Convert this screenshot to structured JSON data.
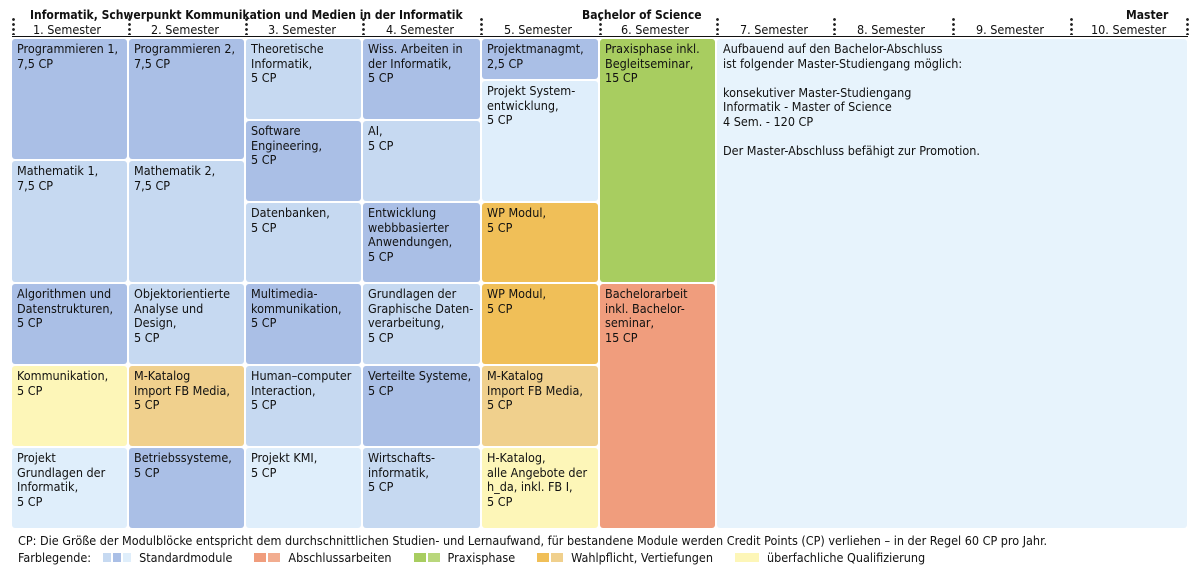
{
  "header": {
    "bachelor_title": "Informatik, Schwerpunkt Kommunikation und Medien in der Informatik",
    "bachelor_degree": "Bachelor of Science",
    "master_title": "Master"
  },
  "semesters": [
    "1. Semester",
    "2. Semester",
    "3. Semester",
    "4. Semester",
    "5. Semester",
    "6. Semester",
    "7. Semester",
    "8. Semester",
    "9. Semester",
    "10. Semester"
  ],
  "modules": {
    "s1": [
      "Programmieren 1,\n7,5 CP",
      "Mathematik 1,\n7,5 CP",
      "Algorithmen und\nDatenstrukturen,\n5 CP",
      "Kommunikation,\n5 CP",
      "Projekt\nGrundlagen der\nInformatik,\n5 CP"
    ],
    "s2": [
      "Programmieren 2,\n7,5 CP",
      "Mathematik 2,\n7,5 CP",
      "Objektorientierte\nAnalyse und\nDesign,\n5 CP",
      "M-Katalog\nImport FB Media,\n5 CP",
      "Betriebssysteme,\n5 CP"
    ],
    "s3": [
      "Theoretische\nInformatik,\n5 CP",
      "Software\nEngineering,\n5 CP",
      "Datenbanken,\n5 CP",
      "Multimedia-\nkommunikation,\n5 CP",
      "Human–computer\nInteraction,\n5 CP",
      "Projekt KMI,\n5 CP"
    ],
    "s4": [
      "Wiss. Arbeiten in\nder Informatik,\n5 CP",
      "AI,\n5 CP",
      "Entwicklung\nwebbbasierter\nAnwendungen,\n5 CP",
      "Grundlagen der\nGraphische Daten-\nverarbeitung,\n5 CP",
      "Verteilte Systeme,\n5 CP",
      "Wirtschafts-\ninformatik,\n5 CP"
    ],
    "s5": [
      "Projektmanagmt,\n2,5 CP",
      "Projekt System-\nentwicklung,\n5 CP",
      "WP Modul,\n5 CP",
      "WP Modul,\n5 CP",
      "M-Katalog\nImport FB Media,\n5 CP",
      "H-Katalog,\nalle Angebote der\nh_da, inkl. FB I,\n5 CP"
    ],
    "s6": [
      "Praxisphase inkl.\nBegleitseminar,\n15 CP",
      "Bachelorarbeit\ninkl. Bachelor-\nseminar,\n15 CP"
    ]
  },
  "master_text": "Aufbauend auf den Bachelor-Abschluss\nist folgender Master-Studiengang möglich:\n\nkonsekutiver Master-Studiengang\nInformatik - Master of Science\n4 Sem. - 120 CP\n\nDer Master-Abschluss befähigt zur Promotion.",
  "footer": {
    "note": "CP: Die Größe der Modulblöcke entspricht dem durchschnittlichen Studien- und Lernaufwand, für bestandene Module werden Credit Points (CP) verliehen – in der Regel 60 CP pro Jahr.",
    "legend_label": "Farblegende:",
    "legend": [
      "Standardmodule",
      "Abschlussarbeiten",
      "Praxisphase",
      "Wahlpflicht, Vertiefungen",
      "überfachliche Qualifizierung"
    ]
  },
  "colors": {
    "standard_dark": "#aabfe6",
    "standard_mid": "#c6d9f1",
    "standard_light": "#dfeefb",
    "abschluss": "#f09d7d",
    "praxis": "#a8cd60",
    "wahlpflicht": "#f0bf58",
    "m_katalog": "#f0d08d",
    "ueberfachlich": "#fdf6b8",
    "master": "#e7f3fc"
  }
}
